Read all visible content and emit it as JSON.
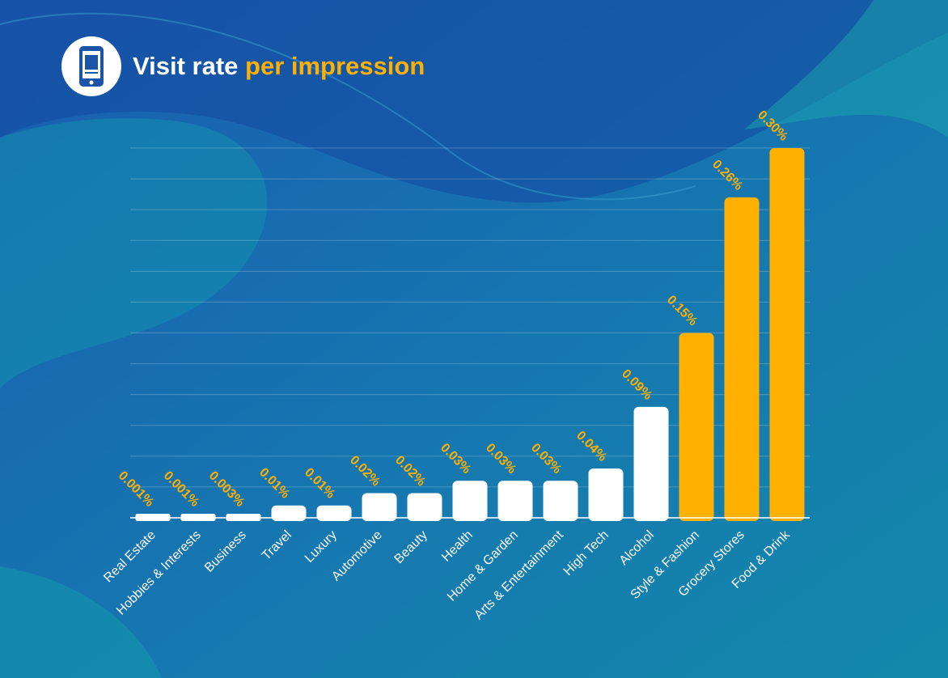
{
  "header": {
    "title_main": "Visit rate",
    "title_accent": "per impression",
    "icon": "mobile-phone-icon"
  },
  "colors": {
    "highlight_bar": "#ffb000",
    "default_bar": "#ffffff",
    "value_label": "#ffb000",
    "background_dark": "#1449a0",
    "background_teal": "#129ab0"
  },
  "chart_data": {
    "type": "bar",
    "categories": [
      "Real Estate",
      "Hobbies & Interests",
      "Business",
      "Travel",
      "Luxury",
      "Automotive",
      "Beauty",
      "Health",
      "Home & Garden",
      "Arts & Entertainment",
      "High Tech",
      "Alcohol",
      "Style & Fashion",
      "Grocery Stores",
      "Food & Drink"
    ],
    "values": [
      0.001,
      0.001,
      0.003,
      0.01,
      0.01,
      0.02,
      0.02,
      0.03,
      0.03,
      0.03,
      0.04,
      0.09,
      0.15,
      0.26,
      0.3
    ],
    "value_labels": [
      "0.001%",
      "0.001%",
      "0.003%",
      "0.01%",
      "0.01%",
      "0.02%",
      "0.02%",
      "0.03%",
      "0.03%",
      "0.03%",
      "0.04%",
      "0.09%",
      "0.15%",
      "0.26%",
      "0.30%"
    ],
    "highlighted": [
      false,
      false,
      false,
      false,
      false,
      false,
      false,
      false,
      false,
      false,
      false,
      false,
      true,
      true,
      true
    ],
    "unit": "%",
    "ylim": [
      0,
      0.3
    ],
    "grid": true,
    "title": "Visit rate per impression"
  }
}
